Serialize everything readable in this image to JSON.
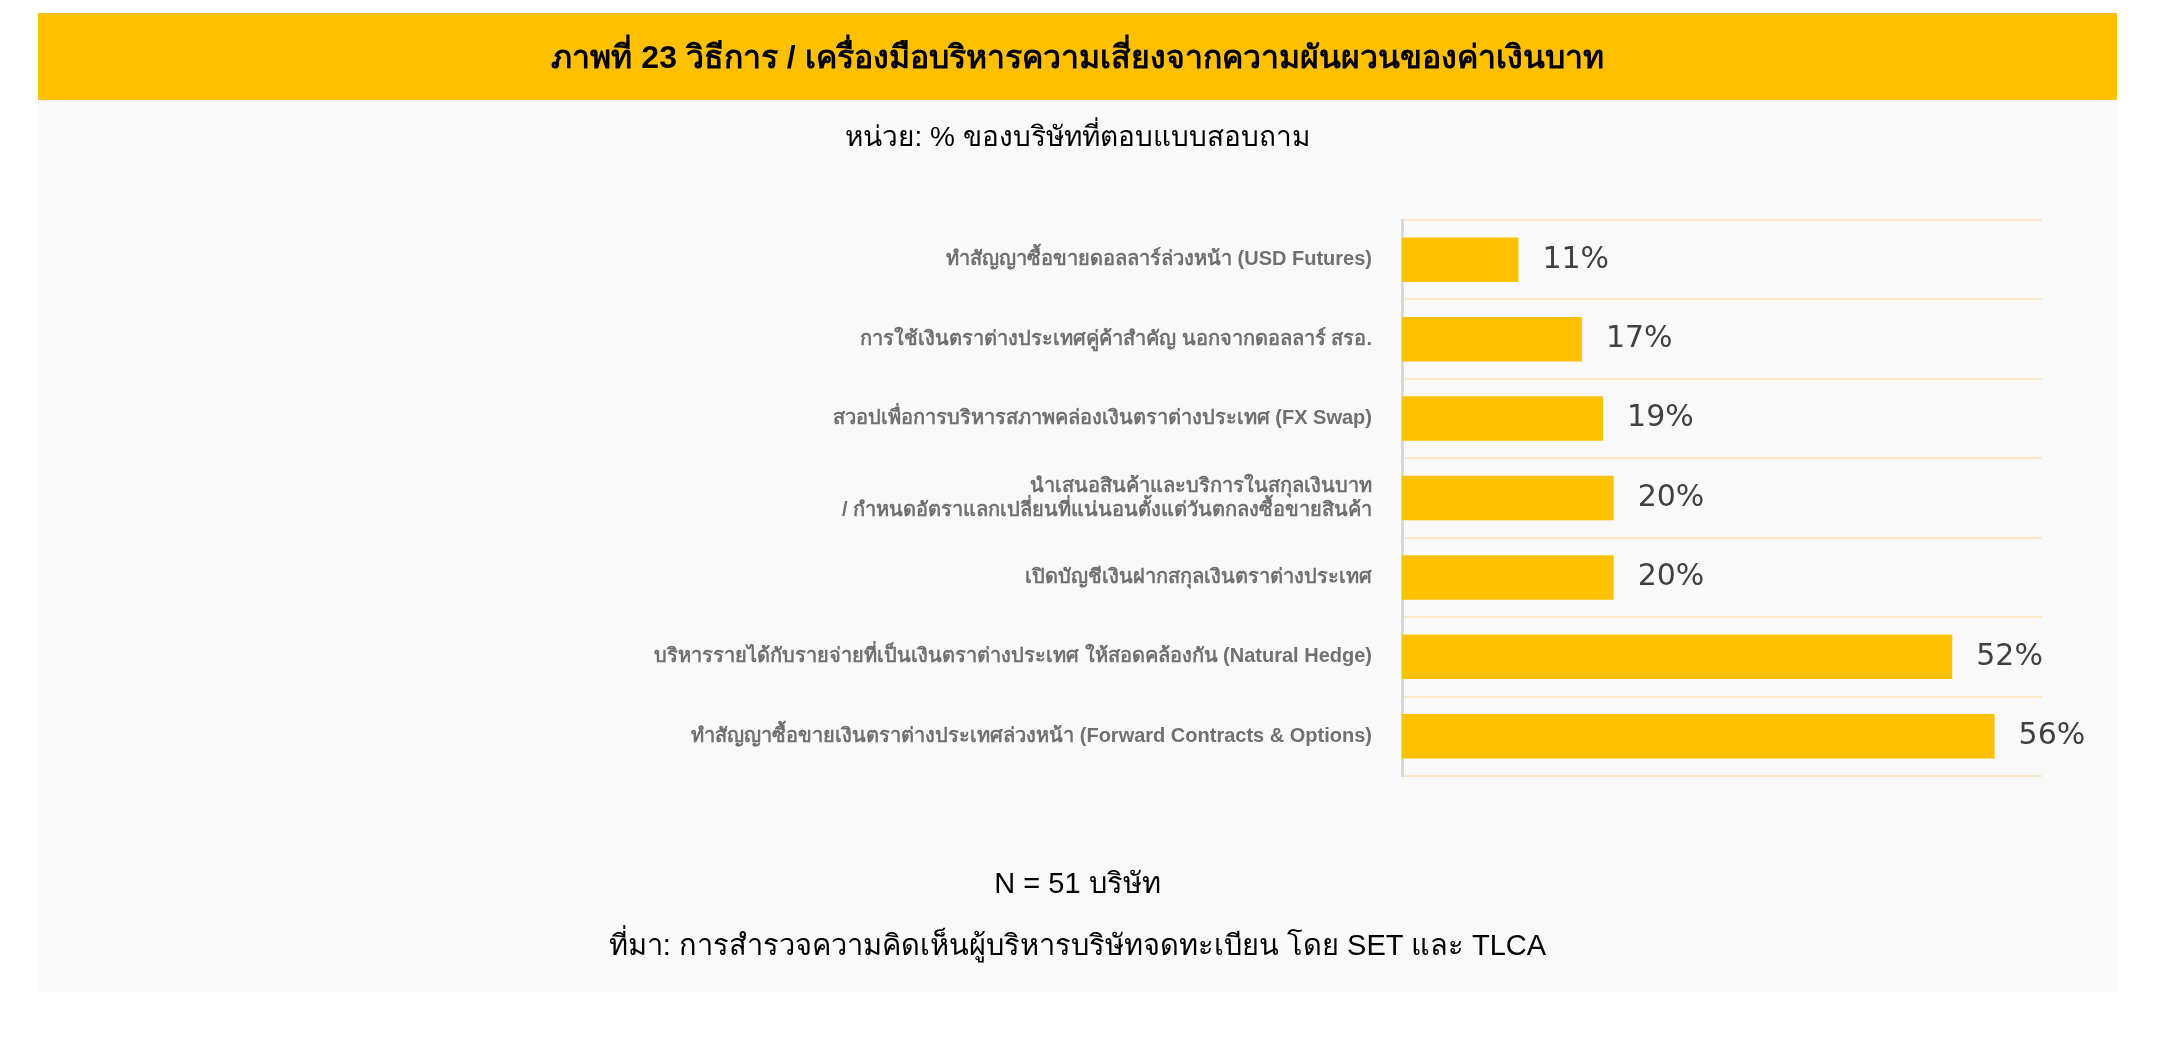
{
  "chart_data": {
    "type": "bar",
    "orientation": "horizontal",
    "title": "ภาพที่ 23 วิธีการ / เครื่องมือบริหารความเสี่ยงจากความผันผวนของค่าเงินบาท",
    "subtitle": "หน่วย: % ของบริษัทที่ตอบแบบสอบถาม",
    "categories": [
      "ทำสัญญาซื้อขายดอลลาร์ล่วงหน้า (USD Futures)",
      "การใช้เงินตราต่างประเทศคู่ค้าสำคัญ นอกจากดอลลาร์ สรอ.",
      "สวอปเพื่อการบริหารสภาพคล่องเงินตราต่างประเทศ (FX Swap)",
      "นำเสนอสินค้าและบริการในสกุลเงินบาท\n/ กำหนดอัตราแลกเปลี่ยนที่แน่นอนตั้งแต่วันตกลงซื้อขายสินค้า",
      "เปิดบัญชีเงินฝากสกุลเงินตราต่างประเทศ",
      "บริหารรายได้กับรายจ่ายที่เป็นเงินตราต่างประเทศ ให้สอดคล้องกัน (Natural Hedge)",
      "ทำสัญญาซื้อขายเงินตราต่างประเทศล่วงหน้า (Forward Contracts & Options)"
    ],
    "values": [
      11,
      17,
      19,
      20,
      20,
      52,
      56
    ],
    "value_labels": [
      "11%",
      "17%",
      "19%",
      "20%",
      "20%",
      "52%",
      "56%"
    ],
    "color": "#ffc000",
    "grid": "y",
    "tick_labels": "y",
    "legend": false,
    "annotations": [
      "N = 51 บริษัท",
      "ที่มา: การสำรวจความคิดเห็นผู้บริหารบริษัทจดทะเบียน โดย SET และ TLCA"
    ]
  }
}
